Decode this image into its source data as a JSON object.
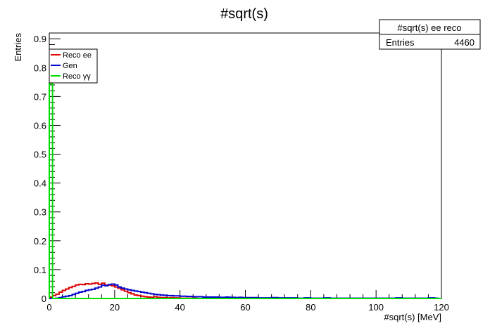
{
  "chart_data": {
    "type": "line",
    "title": "#sqrt(s)",
    "xlabel": "#sqrt(s) [MeV]",
    "ylabel": "Entries",
    "xlim": [
      0,
      120
    ],
    "ylim": [
      0,
      0.92
    ],
    "x_ticks": [
      0,
      20,
      40,
      60,
      80,
      100,
      120
    ],
    "y_ticks": [
      0,
      0.1,
      0.2,
      0.3,
      0.4,
      0.5,
      0.6,
      0.7,
      0.8,
      0.9
    ],
    "grid": false,
    "legend_position": "top-left",
    "stats_box": {
      "title": "#sqrt(s) ee reco",
      "label": "Entries",
      "value": "4460",
      "position": "top-right"
    },
    "bin_width": 1,
    "series": [
      {
        "name": "Reco ee",
        "color": "#dd0000",
        "bins_x": [
          0,
          1,
          2,
          3,
          4,
          5,
          6,
          7,
          8,
          9,
          10,
          11,
          12,
          13,
          14,
          15,
          16,
          17,
          18,
          19,
          20,
          21,
          22,
          23,
          24,
          25,
          26,
          27,
          28,
          29,
          30,
          31,
          32,
          33,
          34,
          35,
          36,
          37,
          38,
          39,
          40,
          41,
          42,
          43,
          44,
          45
        ],
        "values": [
          0.005,
          0.01,
          0.015,
          0.022,
          0.028,
          0.033,
          0.038,
          0.042,
          0.047,
          0.049,
          0.048,
          0.051,
          0.05,
          0.052,
          0.054,
          0.049,
          0.053,
          0.046,
          0.047,
          0.044,
          0.04,
          0.036,
          0.03,
          0.025,
          0.02,
          0.016,
          0.012,
          0.01,
          0.008,
          0.006,
          0.005,
          0.004,
          0.006,
          0.004,
          0.003,
          0.003,
          0.002,
          0.003,
          0.002,
          0.002,
          0.001,
          0.001,
          0.001,
          0.001,
          0.001,
          0.0
        ]
      },
      {
        "name": "Gen",
        "color": "#0000cc",
        "bins_x": [
          0,
          1,
          2,
          3,
          4,
          5,
          6,
          7,
          8,
          9,
          10,
          11,
          12,
          13,
          14,
          15,
          16,
          17,
          18,
          19,
          20,
          21,
          22,
          23,
          24,
          25,
          26,
          27,
          28,
          29,
          30,
          31,
          32,
          33,
          34,
          35,
          36,
          37,
          38,
          39,
          40,
          41,
          42,
          43,
          44,
          45,
          46,
          47,
          48,
          49,
          50,
          51,
          52,
          53,
          54,
          55,
          56,
          57,
          58,
          59,
          60,
          62,
          64,
          66,
          68,
          70,
          72,
          74,
          76,
          78,
          80,
          82,
          84,
          86,
          88,
          90,
          92,
          94,
          96,
          98,
          100,
          102,
          104,
          106,
          108,
          110,
          112,
          114,
          116,
          118
        ],
        "values": [
          0.0,
          0.0,
          0.001,
          0.003,
          0.006,
          0.008,
          0.01,
          0.014,
          0.018,
          0.022,
          0.024,
          0.028,
          0.03,
          0.032,
          0.036,
          0.04,
          0.046,
          0.044,
          0.048,
          0.05,
          0.047,
          0.04,
          0.036,
          0.033,
          0.03,
          0.028,
          0.026,
          0.024,
          0.022,
          0.02,
          0.018,
          0.016,
          0.014,
          0.013,
          0.012,
          0.011,
          0.01,
          0.01,
          0.009,
          0.009,
          0.008,
          0.008,
          0.007,
          0.007,
          0.006,
          0.006,
          0.006,
          0.005,
          0.005,
          0.005,
          0.005,
          0.005,
          0.004,
          0.004,
          0.005,
          0.004,
          0.004,
          0.003,
          0.004,
          0.003,
          0.003,
          0.003,
          0.002,
          0.002,
          0.003,
          0.002,
          0.002,
          0.002,
          0.001,
          0.002,
          0.001,
          0.001,
          0.002,
          0.001,
          0.001,
          0.001,
          0.001,
          0.001,
          0.001,
          0.001,
          0.001,
          0.001,
          0.001,
          0.002,
          0.001,
          0.001,
          0.001,
          0.001,
          0.002,
          0.001
        ]
      },
      {
        "name": "Reco γγ",
        "color": "#00dd00",
        "bins_x": [
          0,
          1,
          2
        ],
        "values": [
          0.745,
          0.0,
          0.0
        ]
      }
    ]
  }
}
